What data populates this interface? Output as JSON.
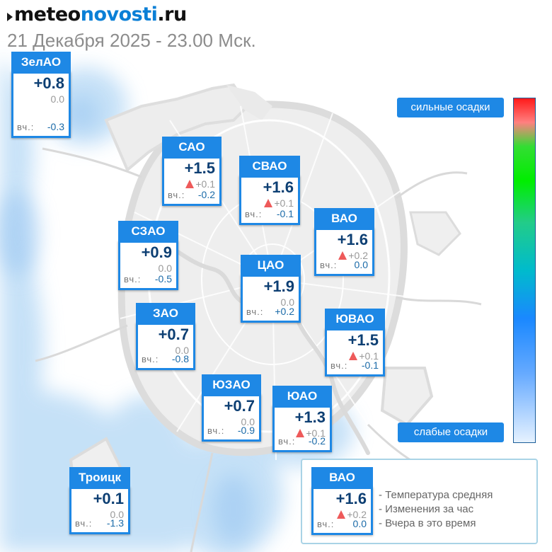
{
  "header": {
    "logo_part1": "meteo",
    "logo_part2": "novosti",
    "logo_part3": ".ru",
    "subtitle": "21 Декабря 2025 - 23.00 Мск."
  },
  "colors": {
    "card_blue": "#1e88e5",
    "temp_text": "#0d3f73",
    "rise_triangle": "#ee5a5a",
    "yesterday_value": "#1a6aa8"
  },
  "districts": {
    "zelao": {
      "name": "ЗелАО",
      "temp": "+0.8",
      "change": "0.0",
      "rise": false,
      "yesterday_label": "вч.:",
      "yesterday": "-0.3"
    },
    "sao": {
      "name": "САО",
      "temp": "+1.5",
      "change": "+0.1",
      "rise": true,
      "yesterday_label": "вч.:",
      "yesterday": "-0.2"
    },
    "svao": {
      "name": "СВАО",
      "temp": "+1.6",
      "change": "+0.1",
      "rise": true,
      "yesterday_label": "вч.:",
      "yesterday": "-0.1"
    },
    "vao": {
      "name": "ВАО",
      "temp": "+1.6",
      "change": "+0.2",
      "rise": true,
      "yesterday_label": "вч.:",
      "yesterday": "0.0"
    },
    "szao": {
      "name": "СЗАО",
      "temp": "+0.9",
      "change": "0.0",
      "rise": false,
      "yesterday_label": "вч.:",
      "yesterday": "-0.5"
    },
    "cao": {
      "name": "ЦАО",
      "temp": "+1.9",
      "change": "0.0",
      "rise": false,
      "yesterday_label": "вч.:",
      "yesterday": "+0.2"
    },
    "zao": {
      "name": "ЗАО",
      "temp": "+0.7",
      "change": "0.0",
      "rise": false,
      "yesterday_label": "вч.:",
      "yesterday": "-0.8"
    },
    "yuvao": {
      "name": "ЮВАО",
      "temp": "+1.5",
      "change": "+0.1",
      "rise": true,
      "yesterday_label": "вч.:",
      "yesterday": "-0.1"
    },
    "yuzao": {
      "name": "ЮЗАО",
      "temp": "+0.7",
      "change": "0.0",
      "rise": false,
      "yesterday_label": "вч.:",
      "yesterday": "-0.9"
    },
    "yuao": {
      "name": "ЮАО",
      "temp": "+1.3",
      "change": "+0.1",
      "rise": true,
      "yesterday_label": "вч.:",
      "yesterday": "-0.2"
    },
    "troick": {
      "name": "Троицк",
      "temp": "+0.1",
      "change": "0.0",
      "rise": false,
      "yesterday_label": "вч.:",
      "yesterday": "-1.3"
    }
  },
  "scale": {
    "top_label": "сильные осадки",
    "bottom_label": "слабые осадки"
  },
  "legend": {
    "sample": {
      "name": "ВАО",
      "temp": "+1.6",
      "change": "+0.2",
      "rise": true,
      "yesterday_label": "вч.:",
      "yesterday": "0.0"
    },
    "line1": "- Температура средняя",
    "line2": "- Изменения за час",
    "line3": "- Вчера в это время"
  }
}
